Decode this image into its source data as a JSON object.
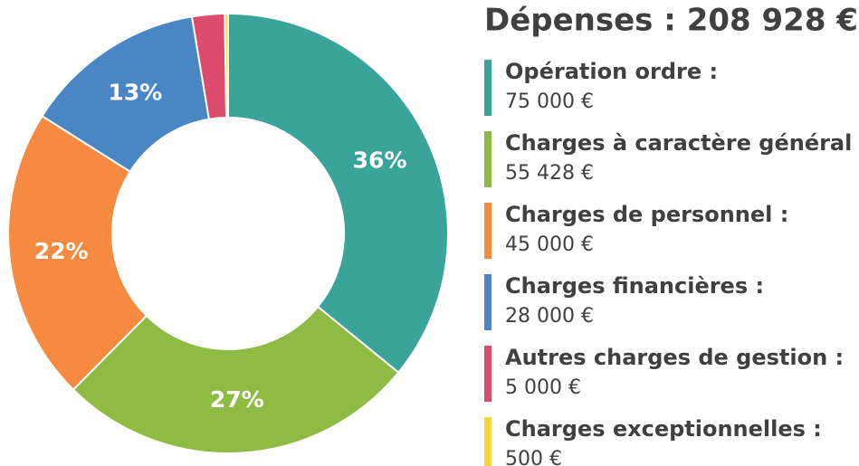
{
  "chart_data": {
    "type": "donut",
    "title": "Dépenses : 208 928 €",
    "categories": [
      "Opération ordre :",
      "Charges à caractère général :",
      "Charges de personnel :",
      "Charges financières :",
      "Autres charges de gestion :",
      "Charges exceptionnelles :"
    ],
    "values": [
      75000,
      55428,
      45000,
      28000,
      5000,
      500
    ],
    "value_labels": [
      "75 000 €",
      "55 428 €",
      "45 000 €",
      "28 000 €",
      "5 000 €",
      "500 €"
    ],
    "percent_labels": [
      "36%",
      "27%",
      "22%",
      "13%",
      null,
      null
    ],
    "colors": [
      "#3aa39a",
      "#8dbb43",
      "#f58a40",
      "#4a86c4",
      "#dc4b6e",
      "#f7d53c"
    ]
  }
}
